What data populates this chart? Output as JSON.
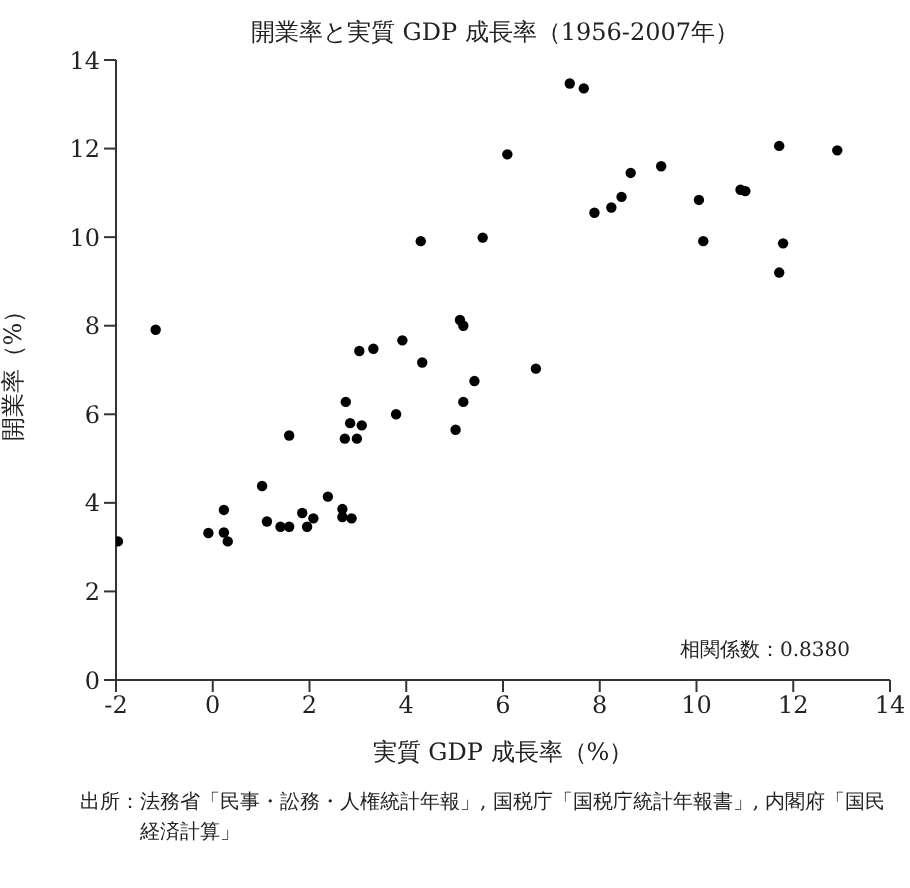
{
  "chart_data": {
    "type": "scatter",
    "title": "開業率と実質 GDP 成長率（1956-2007年）",
    "xlabel": "実質 GDP 成長率（%）",
    "ylabel": "開業率（%）",
    "annotations": [
      "相関係数：0.8380",
      "出所：法務省「民事・訟務・人権統計年報」, 国税庁「国税庁統計年報書」, 内閣府「国民経済計算」"
    ],
    "x": [
      -1.96,
      -0.09,
      0.23,
      0.23,
      0.31,
      1.02,
      1.12,
      1.4,
      1.58,
      1.58,
      1.85,
      1.95,
      2.08,
      2.38,
      2.68,
      2.68,
      2.87,
      2.75,
      2.73,
      2.84,
      2.98,
      3.08,
      3.79,
      3.03,
      3.32,
      4.33,
      5.02,
      5.18,
      5.41,
      6.68,
      -1.18,
      3.92,
      4.3,
      5.11,
      5.18,
      5.58,
      6.09,
      7.38,
      7.67,
      7.89,
      8.24,
      8.45,
      8.64,
      9.27,
      10.05,
      10.14,
      10.91,
      11.01,
      11.71,
      11.79,
      11.71,
      12.91
    ],
    "values": [
      3.13,
      3.32,
      3.84,
      3.33,
      3.13,
      4.38,
      3.58,
      3.46,
      3.46,
      5.52,
      3.77,
      3.46,
      3.65,
      4.14,
      3.86,
      3.68,
      3.65,
      6.28,
      5.45,
      5.8,
      5.45,
      5.75,
      6.0,
      7.43,
      7.48,
      7.17,
      5.65,
      6.28,
      6.75,
      7.03,
      7.91,
      7.67,
      9.91,
      8.13,
      8.0,
      9.99,
      11.87,
      13.47,
      13.36,
      10.55,
      10.67,
      10.91,
      11.45,
      11.6,
      10.84,
      9.91,
      11.07,
      11.04,
      12.06,
      9.86,
      9.2,
      11.96
    ],
    "color": "#000000",
    "marker": "circle",
    "xlim": [
      -2,
      14
    ],
    "xticks": [
      -2,
      0,
      2,
      4,
      6,
      8,
      10,
      12,
      14
    ],
    "ylim": [
      0,
      14
    ],
    "yticks": [
      0,
      2,
      4,
      6,
      8,
      10,
      12,
      14
    ],
    "grid": false,
    "legend": false
  }
}
